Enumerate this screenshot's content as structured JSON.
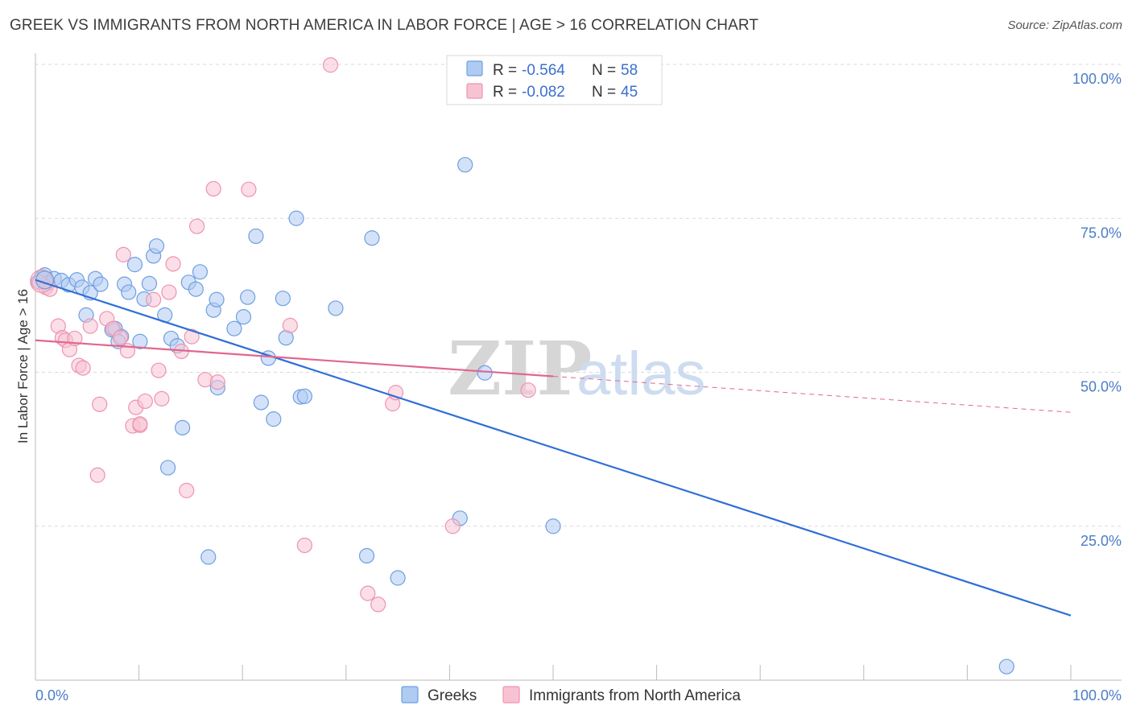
{
  "title": "GREEK VS IMMIGRANTS FROM NORTH AMERICA IN LABOR FORCE | AGE > 16 CORRELATION CHART",
  "source": "Source: ZipAtlas.com",
  "watermark": {
    "zip": "ZIP",
    "atlas": "atlas"
  },
  "colors": {
    "greeks_fill": "#aecbf2",
    "greeks_stroke": "#6f9fe0",
    "greeks_line": "#2f6fd6",
    "imm_fill": "#f7c3d3",
    "imm_stroke": "#ee93b0",
    "imm_line": "#e0678f",
    "grid": "#d9d9d9",
    "tick_text": "#4a7cc9"
  },
  "stats_box": {
    "rows": [
      {
        "r_label": "R = ",
        "r_value": "-0.564",
        "n_label": "N = ",
        "n_value": "58"
      },
      {
        "r_label": "R = ",
        "r_value": "-0.082",
        "n_label": "N = ",
        "n_value": "45"
      }
    ]
  },
  "chart_data": {
    "type": "scatter",
    "title": "GREEK VS IMMIGRANTS FROM NORTH AMERICA IN LABOR FORCE | AGE > 16 CORRELATION CHART",
    "xlabel": "",
    "ylabel": "In Labor Force | Age > 16",
    "xlim": [
      0,
      100
    ],
    "ylim": [
      0,
      105
    ],
    "x_tick_labels": [
      "0.0%",
      "100.0%"
    ],
    "y_ticks": [
      25,
      50,
      75,
      100
    ],
    "y_tick_labels": [
      "25.0%",
      "50.0%",
      "75.0%",
      "100.0%"
    ],
    "grid": true,
    "legend_position": "bottom-center",
    "legend": [
      "Greeks",
      "Immigrants from North America"
    ],
    "series": [
      {
        "name": "Greeks",
        "color": "#6f9fe0",
        "trend": {
          "x": [
            0,
            100
          ],
          "y": [
            65.0,
            10.5
          ],
          "dashed_from": null
        },
        "points": [
          [
            0.3,
            64.7
          ],
          [
            0.6,
            65.4
          ],
          [
            0.9,
            65.8
          ],
          [
            1.2,
            64.5
          ],
          [
            1.8,
            65.2
          ],
          [
            2.5,
            64.9
          ],
          [
            3.2,
            64.2
          ],
          [
            4.0,
            65.0
          ],
          [
            4.5,
            63.8
          ],
          [
            5.3,
            62.9
          ],
          [
            5.8,
            65.2
          ],
          [
            6.3,
            64.3
          ],
          [
            4.9,
            59.3
          ],
          [
            7.4,
            56.9
          ],
          [
            7.7,
            57.1
          ],
          [
            8.3,
            55.8
          ],
          [
            8.6,
            64.3
          ],
          [
            9.0,
            63.0
          ],
          [
            9.6,
            67.5
          ],
          [
            10.1,
            55.0
          ],
          [
            10.5,
            61.9
          ],
          [
            11.0,
            64.4
          ],
          [
            11.4,
            68.9
          ],
          [
            11.7,
            70.5
          ],
          [
            12.5,
            59.3
          ],
          [
            13.1,
            55.5
          ],
          [
            13.7,
            54.3
          ],
          [
            14.2,
            41.0
          ],
          [
            14.8,
            64.6
          ],
          [
            15.5,
            63.5
          ],
          [
            15.9,
            66.3
          ],
          [
            17.2,
            60.1
          ],
          [
            17.5,
            61.8
          ],
          [
            17.6,
            47.5
          ],
          [
            19.2,
            57.1
          ],
          [
            20.1,
            59.0
          ],
          [
            20.5,
            62.2
          ],
          [
            21.3,
            72.1
          ],
          [
            21.8,
            45.1
          ],
          [
            22.5,
            52.3
          ],
          [
            23.0,
            42.4
          ],
          [
            23.9,
            62.0
          ],
          [
            24.2,
            55.6
          ],
          [
            25.2,
            75.0
          ],
          [
            25.6,
            46.0
          ],
          [
            26.0,
            46.1
          ],
          [
            29.0,
            60.4
          ],
          [
            32.5,
            71.8
          ],
          [
            32.0,
            20.2
          ],
          [
            35.0,
            16.6
          ],
          [
            41.5,
            83.7
          ],
          [
            43.4,
            49.9
          ],
          [
            41.0,
            26.3
          ],
          [
            50.0,
            25.0
          ],
          [
            93.8,
            2.2
          ],
          [
            12.8,
            34.5
          ],
          [
            16.7,
            20.0
          ],
          [
            8.0,
            55.0
          ]
        ]
      },
      {
        "name": "Immigrants from North America",
        "color": "#ee93b0",
        "trend": {
          "x": [
            0,
            100
          ],
          "y": [
            55.2,
            43.5
          ],
          "dashed_from": 50
        },
        "points": [
          [
            0.4,
            64.6
          ],
          [
            1.0,
            63.8
          ],
          [
            1.4,
            63.5
          ],
          [
            2.2,
            57.5
          ],
          [
            2.6,
            55.6
          ],
          [
            2.9,
            55.2
          ],
          [
            3.3,
            53.7
          ],
          [
            3.8,
            55.5
          ],
          [
            4.2,
            51.1
          ],
          [
            4.6,
            50.7
          ],
          [
            5.3,
            57.5
          ],
          [
            6.2,
            44.8
          ],
          [
            6.9,
            58.7
          ],
          [
            7.5,
            57.1
          ],
          [
            8.2,
            55.6
          ],
          [
            8.5,
            69.1
          ],
          [
            8.9,
            53.5
          ],
          [
            9.4,
            41.3
          ],
          [
            9.7,
            44.3
          ],
          [
            10.1,
            41.4
          ],
          [
            10.6,
            45.3
          ],
          [
            11.4,
            61.8
          ],
          [
            11.9,
            50.3
          ],
          [
            12.2,
            45.7
          ],
          [
            12.9,
            63.0
          ],
          [
            13.3,
            67.6
          ],
          [
            14.1,
            53.4
          ],
          [
            14.6,
            30.8
          ],
          [
            15.1,
            55.8
          ],
          [
            15.6,
            73.7
          ],
          [
            16.4,
            48.8
          ],
          [
            17.2,
            79.8
          ],
          [
            17.6,
            48.4
          ],
          [
            20.6,
            79.7
          ],
          [
            24.6,
            57.6
          ],
          [
            26.0,
            21.9
          ],
          [
            28.5,
            99.9
          ],
          [
            32.1,
            14.1
          ],
          [
            33.1,
            12.3
          ],
          [
            34.5,
            44.9
          ],
          [
            34.8,
            46.7
          ],
          [
            40.3,
            25.0
          ],
          [
            47.6,
            47.1
          ],
          [
            6.0,
            33.3
          ],
          [
            10.1,
            41.6
          ]
        ]
      }
    ]
  }
}
